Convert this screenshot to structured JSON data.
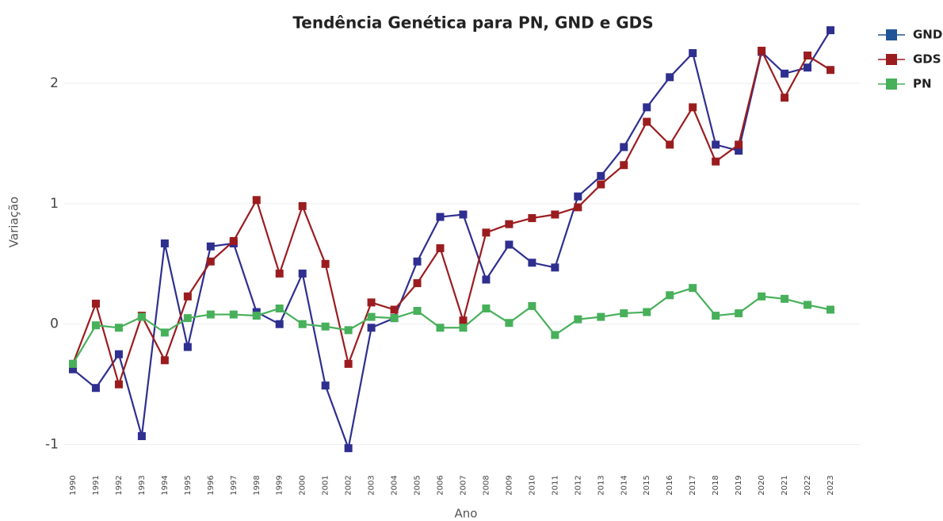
{
  "chart_data": {
    "type": "line",
    "title": "Tendência Genética para PN, GND e GDS",
    "xlabel": "Ano",
    "ylabel": "Variação",
    "categories": [
      "1990",
      "1991",
      "1992",
      "1993",
      "1994",
      "1995",
      "1996",
      "1997",
      "1998",
      "1999",
      "2000",
      "2001",
      "2002",
      "2003",
      "2004",
      "2005",
      "2006",
      "2007",
      "2008",
      "2009",
      "2010",
      "2011",
      "2012",
      "2013",
      "2014",
      "2015",
      "2016",
      "2017",
      "2018",
      "2019",
      "2020",
      "2021",
      "2022",
      "2023"
    ],
    "series": [
      {
        "name": "GND",
        "color": "#2e2f8f",
        "legend_color": "#1f5596",
        "values": [
          -0.375,
          -0.53,
          -0.25,
          -0.93,
          0.67,
          -0.19,
          0.645,
          0.67,
          0.1,
          0,
          0.42,
          -0.51,
          -1.03,
          -0.03,
          0.05,
          0.52,
          0.89,
          0.91,
          0.37,
          0.66,
          0.51,
          0.47,
          1.06,
          1.23,
          1.47,
          1.8,
          2.05,
          2.25,
          1.49,
          1.44,
          2.26,
          2.08,
          2.13,
          2.44
        ]
      },
      {
        "name": "GDS",
        "color": "#9b1c1f",
        "values": [
          -0.33,
          0.17,
          -0.5,
          0.07,
          -0.3,
          0.23,
          0.52,
          0.69,
          1.03,
          0.42,
          0.98,
          0.5,
          -0.33,
          0.18,
          0.12,
          0.34,
          0.63,
          0.03,
          0.76,
          0.83,
          0.88,
          0.91,
          0.97,
          1.16,
          1.32,
          1.68,
          1.49,
          1.8,
          1.35,
          1.49,
          2.27,
          1.88,
          2.23,
          2.11
        ]
      },
      {
        "name": "PN",
        "color": "#47b05a",
        "values": [
          -0.33,
          -0.01,
          -0.03,
          0.06,
          -0.07,
          0.05,
          0.08,
          0.08,
          0.07,
          0.13,
          0,
          -0.02,
          -0.05,
          0.06,
          0.05,
          0.11,
          -0.03,
          -0.03,
          0.13,
          0.01,
          0.15,
          -0.09,
          0.04,
          0.06,
          0.09,
          0.1,
          0.24,
          0.3,
          0.07,
          0.09,
          0.23,
          0.21,
          0.16,
          0.12
        ]
      }
    ],
    "ylim": [
      -1.2,
      2.5
    ],
    "yticks": [
      -1,
      0,
      1,
      2
    ],
    "grid": true,
    "legend": "top-right"
  }
}
